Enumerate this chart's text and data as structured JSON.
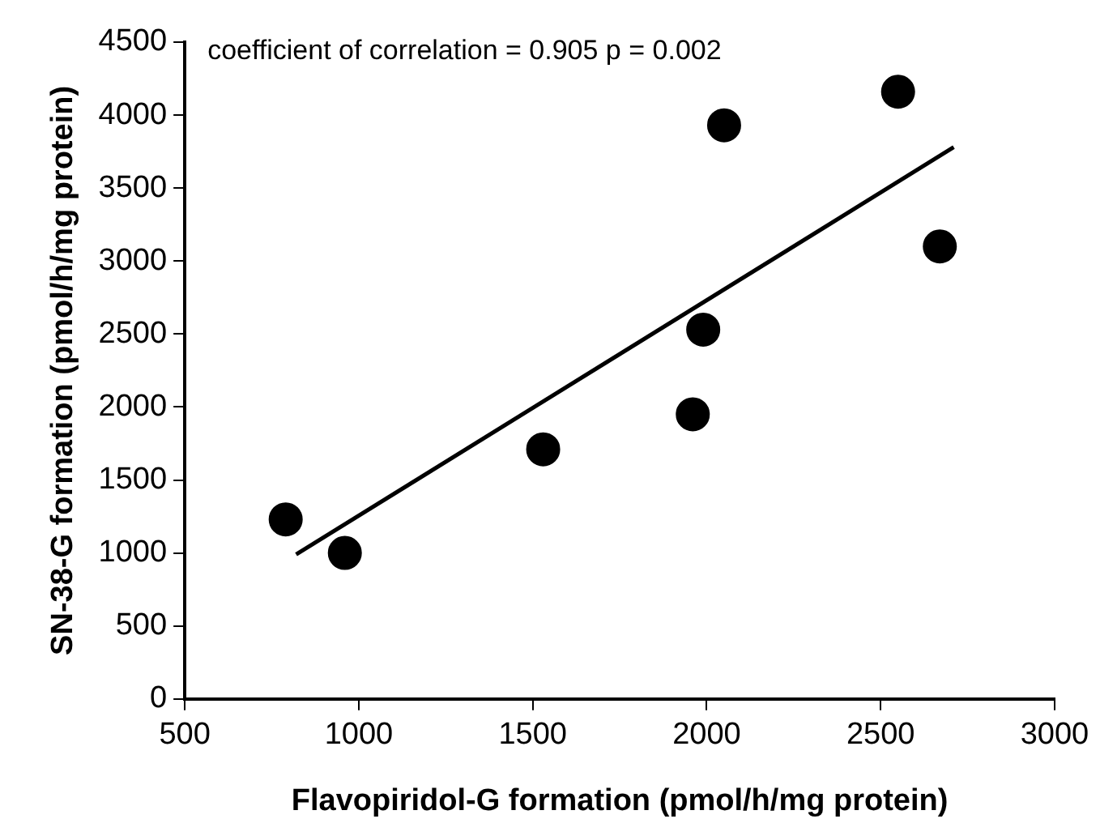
{
  "chart_data": {
    "type": "scatter",
    "xlabel": "Flavopiridol-G formation (pmol/h/mg protein)",
    "ylabel": "SN-38-G formation (pmol/h/mg protein)",
    "annotations": [
      "coefficient of correlation = 0.905 p = 0.002"
    ],
    "xlim": [
      500,
      3000
    ],
    "xticks": [
      500,
      1000,
      1500,
      2000,
      2500,
      3000
    ],
    "ylim": [
      0,
      4500
    ],
    "yticks": [
      0,
      500,
      1000,
      1500,
      2000,
      2500,
      3000,
      3500,
      4000,
      4500
    ],
    "marker": "circle",
    "legend": false,
    "series": [
      {
        "color": "#000000",
        "x": [
          790,
          960,
          1530,
          1960,
          1990,
          2050,
          2550,
          2670
        ],
        "values": [
          1230,
          1000,
          1710,
          1950,
          2530,
          3930,
          4160,
          3100
        ]
      },
      {
        "type": "line",
        "color": "#000000",
        "marker": "none",
        "x": [
          820,
          2710
        ],
        "values": [
          990,
          3780
        ]
      }
    ]
  }
}
